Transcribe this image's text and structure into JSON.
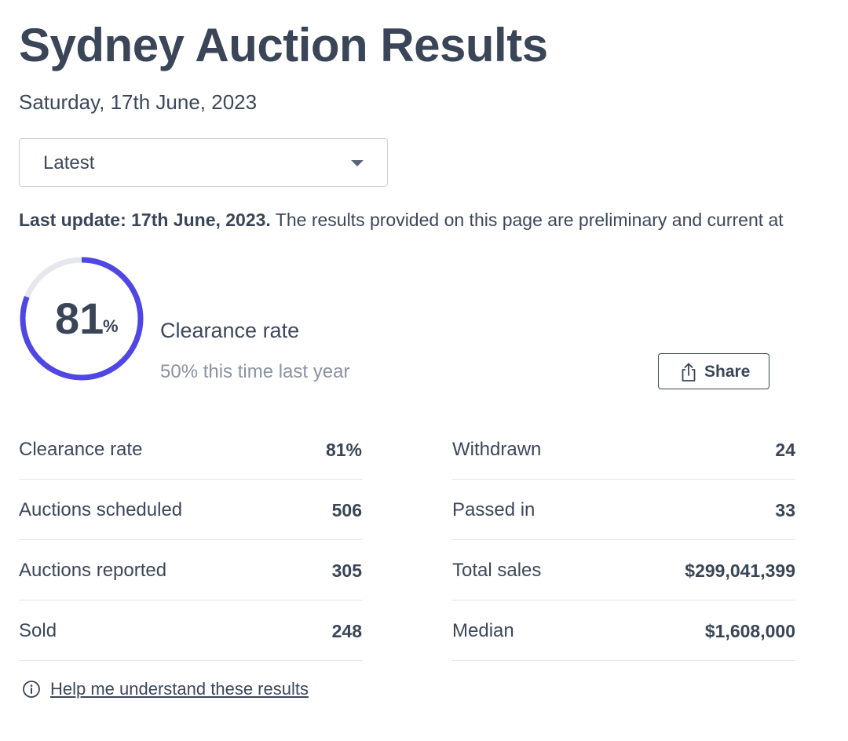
{
  "header": {
    "title": "Sydney Auction Results",
    "date": "Saturday, 17th June, 2023"
  },
  "filter": {
    "selected": "Latest"
  },
  "update": {
    "bold": "Last update: 17th June, 2023.",
    "text": " The results provided on this page are preliminary and current at"
  },
  "summary": {
    "clearance_value": "81",
    "clearance_unit": "%",
    "clearance_fraction": 0.81,
    "clearance_label": "Clearance rate",
    "last_year": "50% this time last year"
  },
  "share": {
    "label": "Share",
    "icon": "share-icon"
  },
  "stats_left": [
    {
      "label": "Clearance rate",
      "value": "81%"
    },
    {
      "label": "Auctions scheduled",
      "value": "506"
    },
    {
      "label": "Auctions reported",
      "value": "305"
    },
    {
      "label": "Sold",
      "value": "248"
    }
  ],
  "stats_right": [
    {
      "label": "Withdrawn",
      "value": "24"
    },
    {
      "label": "Passed in",
      "value": "33"
    },
    {
      "label": "Total sales",
      "value": "$299,041,399"
    },
    {
      "label": "Median",
      "value": "$1,608,000"
    }
  ],
  "help": {
    "link": "Help me understand these results",
    "icon": "info-icon"
  },
  "colors": {
    "accent": "#4f46e5",
    "track": "#e6e7ec",
    "text": "#3a4558",
    "muted": "#8a92a0"
  }
}
